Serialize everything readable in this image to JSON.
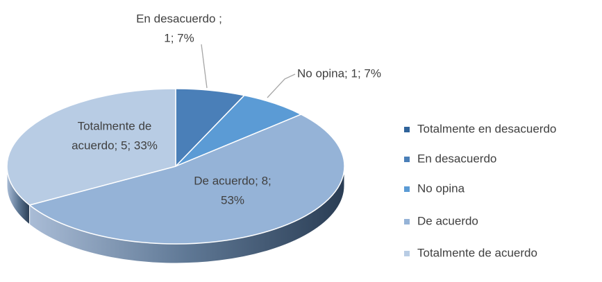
{
  "chart_data": {
    "type": "pie",
    "categories": [
      "Totalmente en desacuerdo",
      "En desacuerdo",
      "No opina",
      "De acuerdo",
      "Totalmente de acuerdo"
    ],
    "values": [
      0,
      1,
      1,
      8,
      5
    ],
    "value_labels": [
      null,
      [
        "En desacuerdo ;",
        "1; 7%"
      ],
      [
        "No opina; 1; 7%"
      ],
      [
        "De acuerdo; 8;",
        "53%"
      ],
      [
        "Totalmente de",
        "acuerdo; 5; 33%"
      ]
    ],
    "colors": [
      "#30639a",
      "#4a7fb8",
      "#5b9bd5",
      "#95b3d7",
      "#b8cce4"
    ],
    "legend": "right"
  }
}
